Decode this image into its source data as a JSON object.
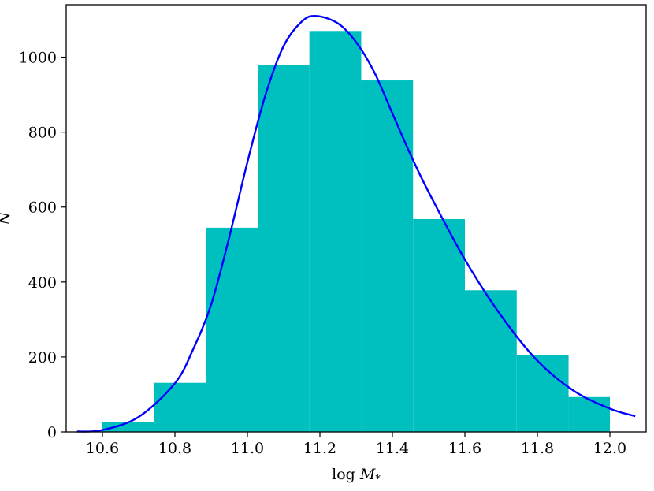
{
  "chart_data": {
    "type": "bar",
    "subtype": "histogram_with_curve",
    "xlabel": "log M_*",
    "xlabel_parts": {
      "text": "log ",
      "symbol": "M",
      "subscript": "*"
    },
    "ylabel": "N",
    "xlim": [
      10.5,
      12.1
    ],
    "ylim": [
      0,
      1140
    ],
    "xticks": [
      10.6,
      10.8,
      11.0,
      11.2,
      11.4,
      11.6,
      11.8,
      12.0
    ],
    "xtick_labels": [
      "10.6",
      "10.8",
      "11.0",
      "11.2",
      "11.4",
      "11.6",
      "11.8",
      "12.0"
    ],
    "yticks": [
      0,
      200,
      400,
      600,
      800,
      1000
    ],
    "ytick_labels": [
      "0",
      "200",
      "400",
      "600",
      "800",
      "1000"
    ],
    "grid": false,
    "series": [
      {
        "kind": "histogram",
        "color": "#00bfbf",
        "bin_edges": [
          10.6,
          10.743,
          10.886,
          11.029,
          11.171,
          11.314,
          11.457,
          11.6,
          11.743,
          11.886,
          12.0
        ],
        "values": [
          26,
          131,
          545,
          978,
          1070,
          938,
          568,
          378,
          205,
          93
        ]
      },
      {
        "kind": "line",
        "color": "#0000ff",
        "x": [
          10.53,
          10.6,
          10.7,
          10.8,
          10.85,
          10.9,
          10.95,
          11.0,
          11.05,
          11.1,
          11.15,
          11.19,
          11.25,
          11.3,
          11.35,
          11.4,
          11.45,
          11.5,
          11.6,
          11.7,
          11.8,
          11.9,
          12.0,
          12.07
        ],
        "y": [
          1,
          5,
          40,
          130,
          220,
          340,
          520,
          720,
          900,
          1030,
          1095,
          1110,
          1090,
          1040,
          960,
          850,
          740,
          640,
          460,
          310,
          190,
          110,
          62,
          42
        ]
      }
    ]
  }
}
